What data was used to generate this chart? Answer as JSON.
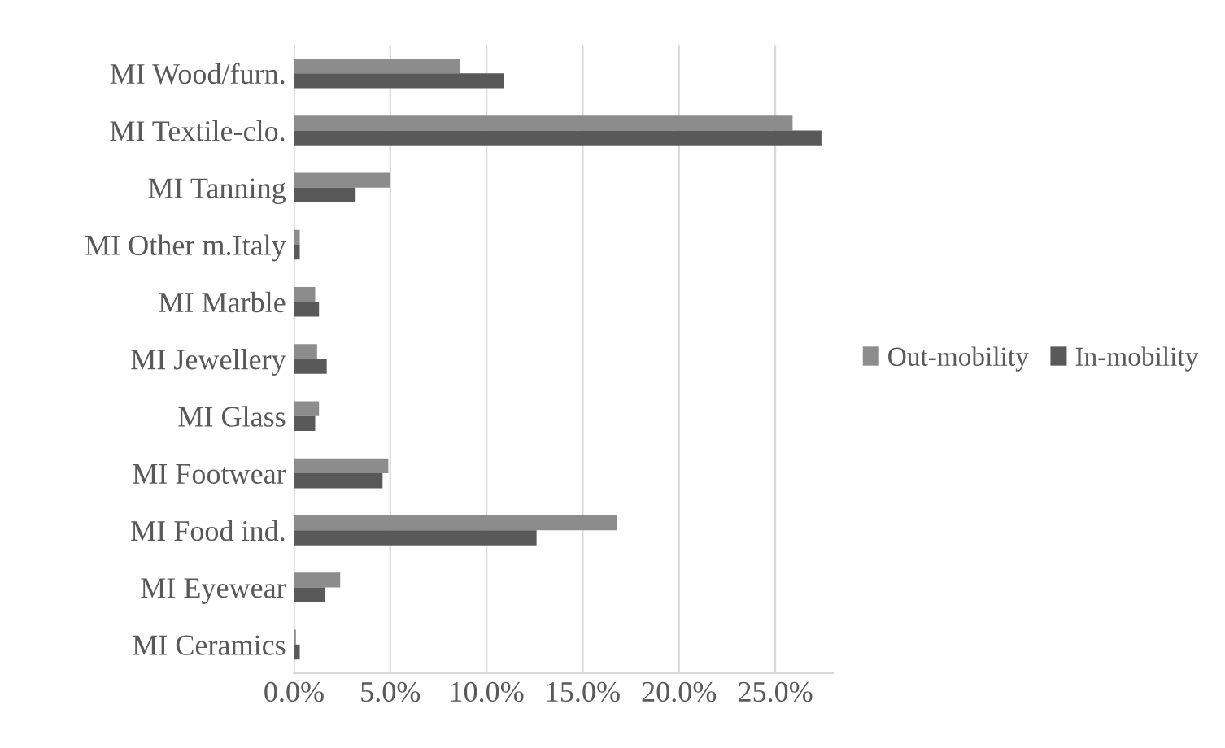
{
  "chart_data": {
    "type": "bar",
    "orientation": "horizontal",
    "categories": [
      "MI Wood/furn.",
      "MI Textile-clo.",
      "MI Tanning",
      "MI Other m.Italy",
      "MI Marble",
      "MI Jewellery",
      "MI Glass",
      "MI Footwear",
      "MI Food ind.",
      "MI Eyewear",
      "MI Ceramics"
    ],
    "series": [
      {
        "name": "Out-mobility",
        "color": "#8c8c8c",
        "values": [
          8.6,
          25.9,
          5.0,
          0.3,
          1.1,
          1.2,
          1.3,
          4.9,
          16.8,
          2.4,
          0.1
        ]
      },
      {
        "name": "In-mobility",
        "color": "#595959",
        "values": [
          10.9,
          27.4,
          3.2,
          0.3,
          1.3,
          1.7,
          1.1,
          4.6,
          12.6,
          1.6,
          0.3
        ]
      }
    ],
    "xlim": [
      0,
      28
    ],
    "xticks": [
      {
        "value": 0,
        "label": "0.0%"
      },
      {
        "value": 5,
        "label": "5.0%"
      },
      {
        "value": 10,
        "label": "10.0%"
      },
      {
        "value": 15,
        "label": "15.0%"
      },
      {
        "value": 20,
        "label": "20.0%"
      },
      {
        "value": 25,
        "label": "25.0%"
      }
    ],
    "grid": "x",
    "legend": "right"
  }
}
